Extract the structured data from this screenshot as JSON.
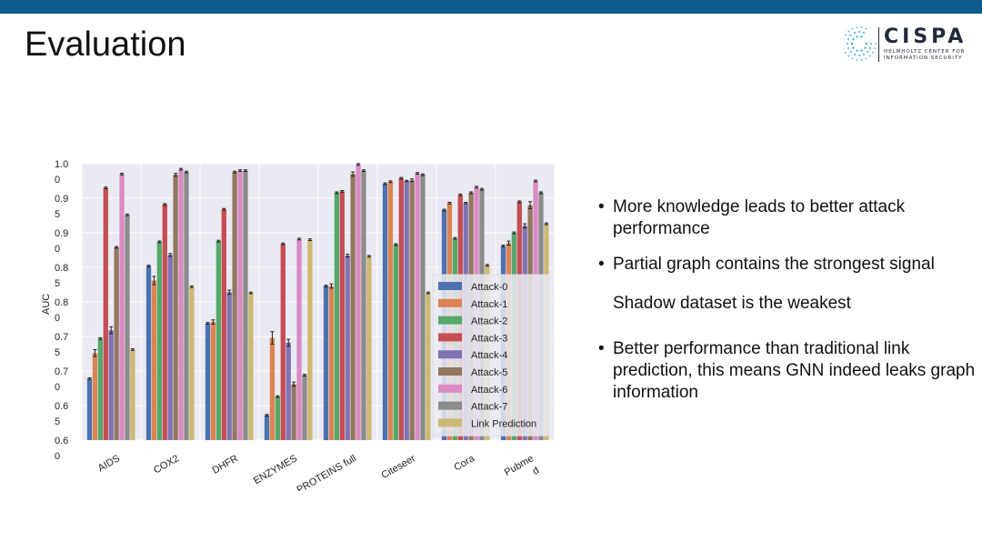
{
  "slide": {
    "title": "Evaluation",
    "logo": {
      "name": "CISPA",
      "line1": "HELMHOLTZ CENTER FOR",
      "line2": "INFORMATION SECURITY"
    },
    "bullets": [
      {
        "dot": "•",
        "text": "More knowledge leads to better attack performance"
      },
      {
        "dot": "•",
        "text": "Partial graph contains the strongest signal"
      },
      {
        "dot": "",
        "text": "Shadow dataset is the weakest"
      },
      {
        "dot": "•",
        "text": "Better performance than traditional link prediction, this means GNN indeed leaks  graph information"
      }
    ]
  },
  "chart_data": {
    "type": "bar",
    "ylabel": "AUC",
    "ylim": [
      0.6,
      1.0
    ],
    "grid": true,
    "legend_position": "lower-right",
    "ytick_labels": [
      [
        "1.0",
        "0"
      ],
      [
        "0.9",
        "5"
      ],
      [
        "0.9",
        "0"
      ],
      [
        "0.8",
        "5"
      ],
      [
        "0.8",
        "0"
      ],
      [
        "0.7",
        "5"
      ],
      [
        "0.7",
        "0"
      ],
      [
        "0.6",
        "5"
      ],
      [
        "0.6",
        "0"
      ]
    ],
    "ytick_values": [
      1.0,
      0.95,
      0.9,
      0.85,
      0.8,
      0.75,
      0.7,
      0.65,
      0.6
    ],
    "categories": [
      "AIDS",
      "COX2",
      "DHFR",
      "ENZYMES",
      "PROTEINS full",
      "Citeseer",
      "Cora",
      "Pubmed"
    ],
    "category_display": [
      [
        "AIDS"
      ],
      [
        "COX2"
      ],
      [
        "DHFR"
      ],
      [
        "ENZYMES"
      ],
      [
        "PROTEINS full"
      ],
      [
        "Citeseer"
      ],
      [
        "Cora"
      ],
      [
        "Pubme",
        "d"
      ]
    ],
    "colors": [
      "#4c72b0",
      "#dd8452",
      "#55a868",
      "#c44e52",
      "#8172b3",
      "#937860",
      "#da8bc3",
      "#8c8c8c",
      "#ccb974"
    ],
    "series": [
      {
        "name": "Attack-0",
        "values": [
          0.689,
          0.852,
          0.769,
          0.636,
          0.823,
          0.971,
          0.933,
          0.881
        ],
        "errors": [
          0,
          0,
          0,
          0,
          0,
          0,
          0,
          0
        ]
      },
      {
        "name": "Attack-1",
        "values": [
          0.726,
          0.831,
          0.771,
          0.748,
          0.823,
          0.974,
          0.943,
          0.885
        ],
        "errors": [
          0.005,
          0.006,
          0.003,
          0.009,
          0.003,
          0,
          0,
          0.003
        ]
      },
      {
        "name": "Attack-2",
        "values": [
          0.747,
          0.887,
          0.888,
          0.663,
          0.958,
          0.883,
          0.892,
          0.9
        ],
        "errors": [
          0,
          0,
          0,
          0,
          0,
          0,
          0,
          0
        ]
      },
      {
        "name": "Attack-3",
        "values": [
          0.965,
          0.941,
          0.934,
          0.884,
          0.96,
          0.979,
          0.955,
          0.945
        ],
        "errors": [
          0,
          0,
          0,
          0,
          0,
          0,
          0,
          0
        ]
      },
      {
        "name": "Attack-4",
        "values": [
          0.759,
          0.868,
          0.814,
          0.741,
          0.867,
          0.975,
          0.943,
          0.91
        ],
        "errors": [
          0.005,
          0.002,
          0.003,
          0.005,
          0.002,
          0.001,
          0.001,
          0.003
        ]
      },
      {
        "name": "Attack-5",
        "values": [
          0.879,
          0.984,
          0.988,
          0.681,
          0.985,
          0.976,
          0.958,
          0.94
        ],
        "errors": [
          0,
          0.002,
          0,
          0.003,
          0.003,
          0.002,
          0,
          0.005
        ]
      },
      {
        "name": "Attack-6",
        "values": [
          0.985,
          0.992,
          0.99,
          0.891,
          0.999,
          0.986,
          0.966,
          0.975
        ],
        "errors": [
          0,
          0,
          0,
          0,
          0,
          0,
          0,
          0
        ]
      },
      {
        "name": "Attack-7",
        "values": [
          0.926,
          0.988,
          0.99,
          0.694,
          0.99,
          0.984,
          0.963,
          0.958
        ],
        "errors": [
          0,
          0,
          0,
          0,
          0,
          0,
          0,
          0
        ]
      },
      {
        "name": "Link Prediction",
        "values": [
          0.731,
          0.822,
          0.813,
          0.89,
          0.866,
          0.813,
          0.853,
          0.913
        ],
        "errors": [
          0,
          0,
          0,
          0,
          0,
          0,
          0,
          0
        ]
      }
    ]
  }
}
